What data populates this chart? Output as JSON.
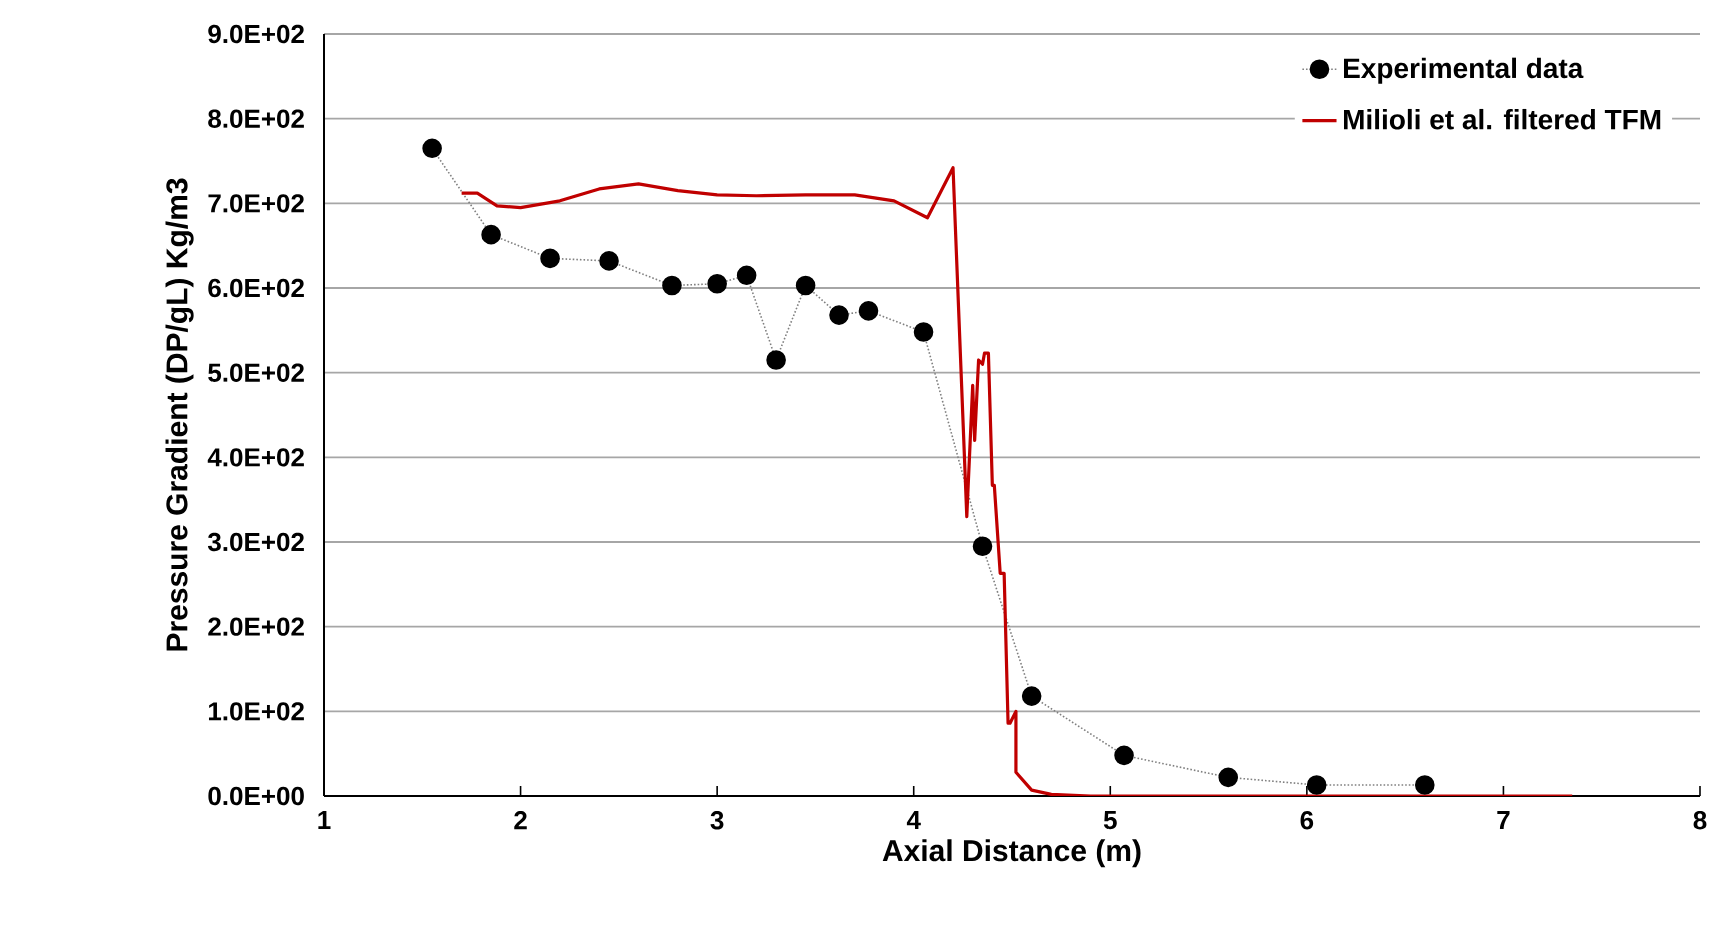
{
  "chart_data": {
    "type": "line",
    "xlabel": "Axial Distance (m)",
    "ylabel": "Pressure Gradient (DP/gL) Kg/m3",
    "xlim": [
      1,
      8
    ],
    "xticks": [
      1,
      2,
      3,
      4,
      5,
      6,
      7,
      8
    ],
    "ylim": [
      0,
      900
    ],
    "yticks": [
      {
        "value": 0,
        "label": "0.0E+00"
      },
      {
        "value": 100,
        "label": "1.0E+02"
      },
      {
        "value": 200,
        "label": "2.0E+02"
      },
      {
        "value": 300,
        "label": "3.0E+02"
      },
      {
        "value": 400,
        "label": "4.0E+02"
      },
      {
        "value": 500,
        "label": "5.0E+02"
      },
      {
        "value": 600,
        "label": "6.0E+02"
      },
      {
        "value": 700,
        "label": "7.0E+02"
      },
      {
        "value": 800,
        "label": "8.0E+02"
      },
      {
        "value": 900,
        "label": "9.0E+02"
      }
    ],
    "grid": "y",
    "legend": "top right",
    "series": [
      {
        "name": "Experimental data",
        "color": "#000000",
        "marker": "circle",
        "line_style": "dotted",
        "x": [
          1.55,
          1.85,
          2.15,
          2.45,
          2.77,
          3.0,
          3.15,
          3.3,
          3.45,
          3.62,
          3.77,
          4.05,
          4.35,
          4.6,
          5.07,
          5.6,
          6.05,
          6.6
        ],
        "values": [
          765,
          663,
          635,
          632,
          603,
          605,
          615,
          515,
          603,
          568,
          573,
          548,
          295,
          118,
          48,
          22,
          13,
          13
        ]
      },
      {
        "name": "Milioli et al. filtered TFM",
        "color": "#c00000",
        "marker": "none",
        "line_style": "solid",
        "x": [
          1.7,
          1.78,
          1.88,
          2.0,
          2.2,
          2.4,
          2.6,
          2.8,
          3.0,
          3.2,
          3.45,
          3.7,
          3.9,
          4.07,
          4.2,
          4.27,
          4.3,
          4.31,
          4.33,
          4.35,
          4.36,
          4.38,
          4.4,
          4.41,
          4.44,
          4.46,
          4.48,
          4.49,
          4.52,
          4.52,
          4.6,
          4.7,
          4.9,
          7.35
        ],
        "values": [
          712,
          712,
          697,
          695,
          703,
          717,
          723,
          715,
          710,
          709,
          710,
          710,
          703,
          683,
          742,
          330,
          485,
          420,
          515,
          510,
          523,
          523,
          367,
          367,
          263,
          263,
          86,
          86,
          100,
          28,
          7,
          2,
          0,
          0
        ]
      }
    ]
  }
}
